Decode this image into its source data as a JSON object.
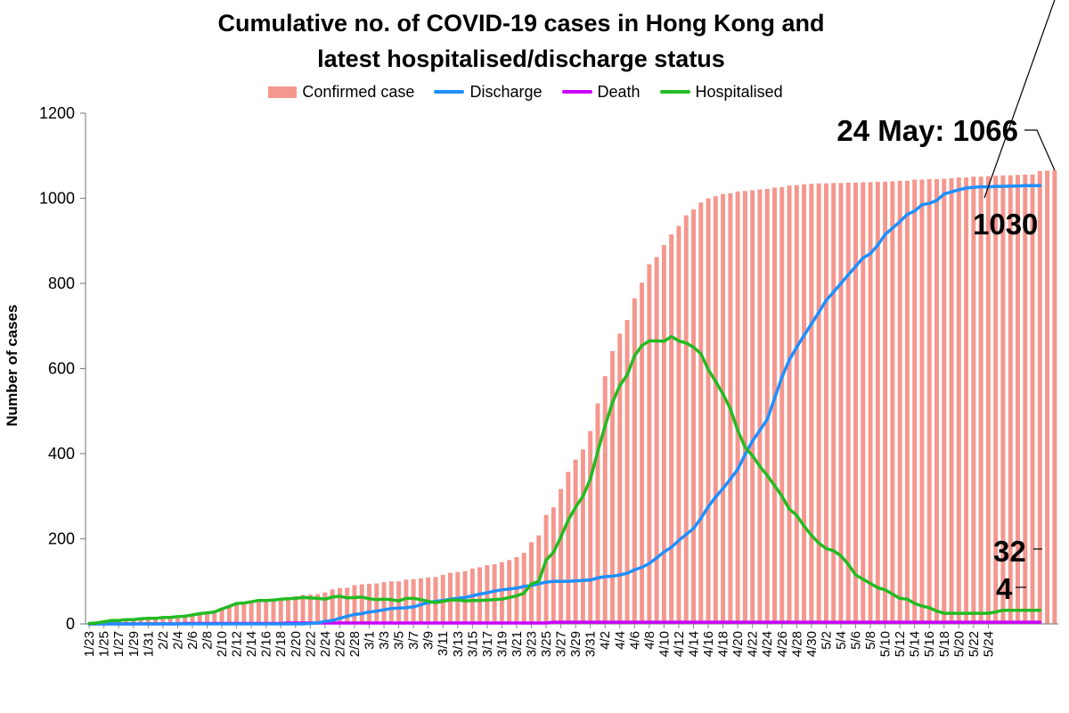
{
  "chart_data": {
    "type": "bar",
    "title_lines": [
      "Cumulative no. of COVID-19 cases in Hong Kong and",
      "latest hospitalised/discharge status"
    ],
    "ylabel": "Number of cases",
    "ylim": [
      0,
      1200
    ],
    "yticks": [
      0,
      200,
      400,
      600,
      800,
      1000,
      1200
    ],
    "xtick_labels": [
      "1/23",
      "1/25",
      "1/27",
      "1/29",
      "1/31",
      "2/2",
      "2/4",
      "2/6",
      "2/8",
      "2/10",
      "2/12",
      "2/14",
      "2/16",
      "2/18",
      "2/20",
      "2/22",
      "2/24",
      "2/26",
      "2/28",
      "3/1",
      "3/3",
      "3/5",
      "3/7",
      "3/9",
      "3/11",
      "3/13",
      "3/15",
      "3/17",
      "3/19",
      "3/21",
      "3/23",
      "3/25",
      "3/27",
      "3/29",
      "3/31",
      "4/2",
      "4/4",
      "4/6",
      "4/8",
      "4/10",
      "4/12",
      "4/14",
      "4/16",
      "4/18",
      "4/20",
      "4/22",
      "4/24",
      "4/26",
      "4/28",
      "4/30",
      "5/2",
      "5/4",
      "5/6",
      "5/8",
      "5/10",
      "5/12",
      "5/14",
      "5/16",
      "5/18",
      "5/20",
      "5/22",
      "5/24"
    ],
    "grid": false,
    "legend_position": "top",
    "colors": {
      "confirmed": "#f4978e",
      "discharge": "#1e90ff",
      "death": "#cc00ff",
      "hospitalised": "#22bb22"
    },
    "series": [
      {
        "name": "Confirmed case",
        "type": "bar",
        "x_start": "1/23",
        "values": [
          1,
          2,
          5,
          8,
          8,
          10,
          10,
          12,
          13,
          13,
          15,
          15,
          17,
          18,
          21,
          24,
          26,
          29,
          36,
          42,
          49,
          50,
          53,
          56,
          56,
          57,
          60,
          62,
          65,
          68,
          69,
          70,
          74,
          81,
          84,
          85,
          91,
          93,
          94,
          95,
          98,
          100,
          100,
          104,
          105,
          107,
          109,
          110,
          115,
          120,
          122,
          124,
          130,
          133,
          138,
          140,
          145,
          150,
          157,
          167,
          192,
          208,
          256,
          274,
          317,
          357,
          386,
          410,
          453,
          518,
          582,
          641,
          682,
          714,
          765,
          802,
          845,
          862,
          890,
          915,
          935,
          960,
          974,
          990,
          1000,
          1005,
          1010,
          1012,
          1016,
          1017,
          1019,
          1021,
          1022,
          1025,
          1026,
          1030,
          1031,
          1033,
          1034,
          1035,
          1035,
          1036,
          1036,
          1037,
          1037,
          1038,
          1038,
          1039,
          1039,
          1040,
          1041,
          1041,
          1044,
          1044,
          1045,
          1045,
          1046,
          1047,
          1049,
          1049,
          1051,
          1051,
          1052,
          1053,
          1054,
          1054,
          1055,
          1056,
          1056,
          1064,
          1065,
          1066
        ]
      },
      {
        "name": "Discharge",
        "type": "line",
        "x_start": "1/23",
        "values": [
          0,
          0,
          0,
          0,
          0,
          0,
          0,
          0,
          0,
          0,
          0,
          0,
          0,
          0,
          0,
          0,
          0,
          0,
          0,
          0,
          0,
          0,
          0,
          0,
          0,
          0,
          0,
          0,
          0,
          0,
          1,
          2,
          6,
          8,
          13,
          18,
          22,
          24,
          28,
          30,
          33,
          36,
          37,
          38,
          40,
          45,
          50,
          53,
          55,
          58,
          60,
          62,
          66,
          70,
          73,
          77,
          80,
          82,
          84,
          88,
          90,
          94,
          98,
          100,
          100,
          100,
          101,
          102,
          103,
          108,
          111,
          112,
          115,
          119,
          127,
          133,
          142,
          155,
          169,
          180,
          196,
          210,
          224,
          248,
          275,
          298,
          318,
          340,
          363,
          398,
          430,
          455,
          480,
          530,
          580,
          620,
          650,
          678,
          705,
          732,
          760,
          780,
          800,
          820,
          840,
          860,
          870,
          890,
          915,
          930,
          945,
          962,
          970,
          985,
          988,
          995,
          1010,
          1015,
          1020,
          1024,
          1026,
          1027,
          1027,
          1028,
          1028,
          1029,
          1029,
          1030,
          1030,
          1030
        ]
      },
      {
        "name": "Death",
        "type": "line",
        "x_start": "1/23",
        "values": [
          0,
          0,
          0,
          0,
          0,
          0,
          0,
          0,
          0,
          0,
          0,
          0,
          0,
          1,
          1,
          1,
          1,
          1,
          1,
          1,
          1,
          1,
          1,
          1,
          1,
          1,
          1,
          2,
          2,
          2,
          2,
          2,
          2,
          2,
          2,
          2,
          2,
          2,
          2,
          2,
          2,
          2,
          2,
          2,
          2,
          2,
          2,
          2,
          2,
          2,
          2,
          2,
          2,
          2,
          2,
          2,
          2,
          2,
          2,
          2,
          2,
          2,
          2,
          4,
          4,
          4,
          4,
          4,
          4,
          4,
          4,
          4,
          4,
          4,
          4,
          4,
          4,
          4,
          4,
          4,
          4,
          4,
          4,
          4,
          4,
          4,
          4,
          4,
          4,
          4,
          4,
          4,
          4,
          4,
          4,
          4,
          4,
          4,
          4,
          4,
          4,
          4,
          4,
          4,
          4,
          4,
          4,
          4,
          4,
          4,
          4,
          4,
          4,
          4,
          4,
          4,
          4,
          4,
          4,
          4,
          4,
          4,
          4,
          4,
          4,
          4,
          4,
          4,
          4,
          4
        ]
      },
      {
        "name": "Hospitalised",
        "type": "line",
        "x_start": "1/23",
        "values": [
          1,
          2,
          5,
          8,
          8,
          10,
          10,
          12,
          13,
          13,
          15,
          15,
          17,
          18,
          21,
          24,
          26,
          28,
          35,
          41,
          48,
          49,
          52,
          55,
          55,
          56,
          58,
          59,
          60,
          62,
          61,
          60,
          58,
          63,
          65,
          61,
          62,
          63,
          59,
          57,
          58,
          57,
          54,
          60,
          60,
          57,
          53,
          50,
          53,
          56,
          56,
          54,
          55,
          55,
          56,
          57,
          58,
          62,
          66,
          72,
          94,
          100,
          150,
          168,
          204,
          244,
          274,
          300,
          340,
          405,
          465,
          520,
          560,
          585,
          630,
          654,
          665,
          665,
          664,
          675,
          665,
          660,
          650,
          635,
          598,
          570,
          540,
          505,
          455,
          415,
          395,
          370,
          349,
          325,
          300,
          270,
          255,
          230,
          208,
          190,
          177,
          172,
          160,
          140,
          115,
          105,
          95,
          85,
          80,
          70,
          60,
          58,
          48,
          42,
          38,
          30,
          25,
          25,
          25,
          25,
          25,
          25,
          25,
          28,
          32,
          32,
          32,
          32,
          32,
          32
        ]
      }
    ],
    "annotations": {
      "confirmed_latest": "24 May: 1066",
      "discharge_latest": "1030",
      "hospitalised_latest": "32",
      "death_latest": "4"
    }
  }
}
